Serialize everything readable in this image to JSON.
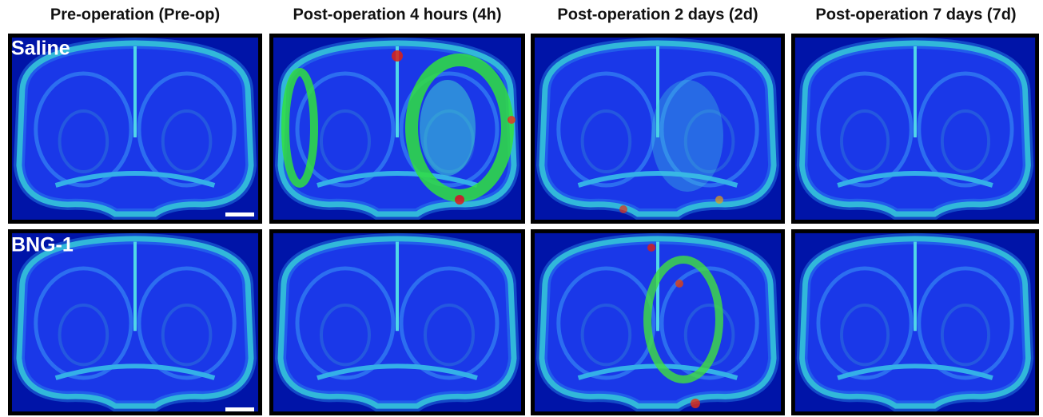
{
  "columns": [
    "Pre-operation (Pre-op)",
    "Post-operation 4 hours (4h)",
    "Post-operation 2 days (2d)",
    "Post-operation 7 days (7d)"
  ],
  "rows": [
    {
      "label": "Saline"
    },
    {
      "label": "BNG-1"
    }
  ]
}
